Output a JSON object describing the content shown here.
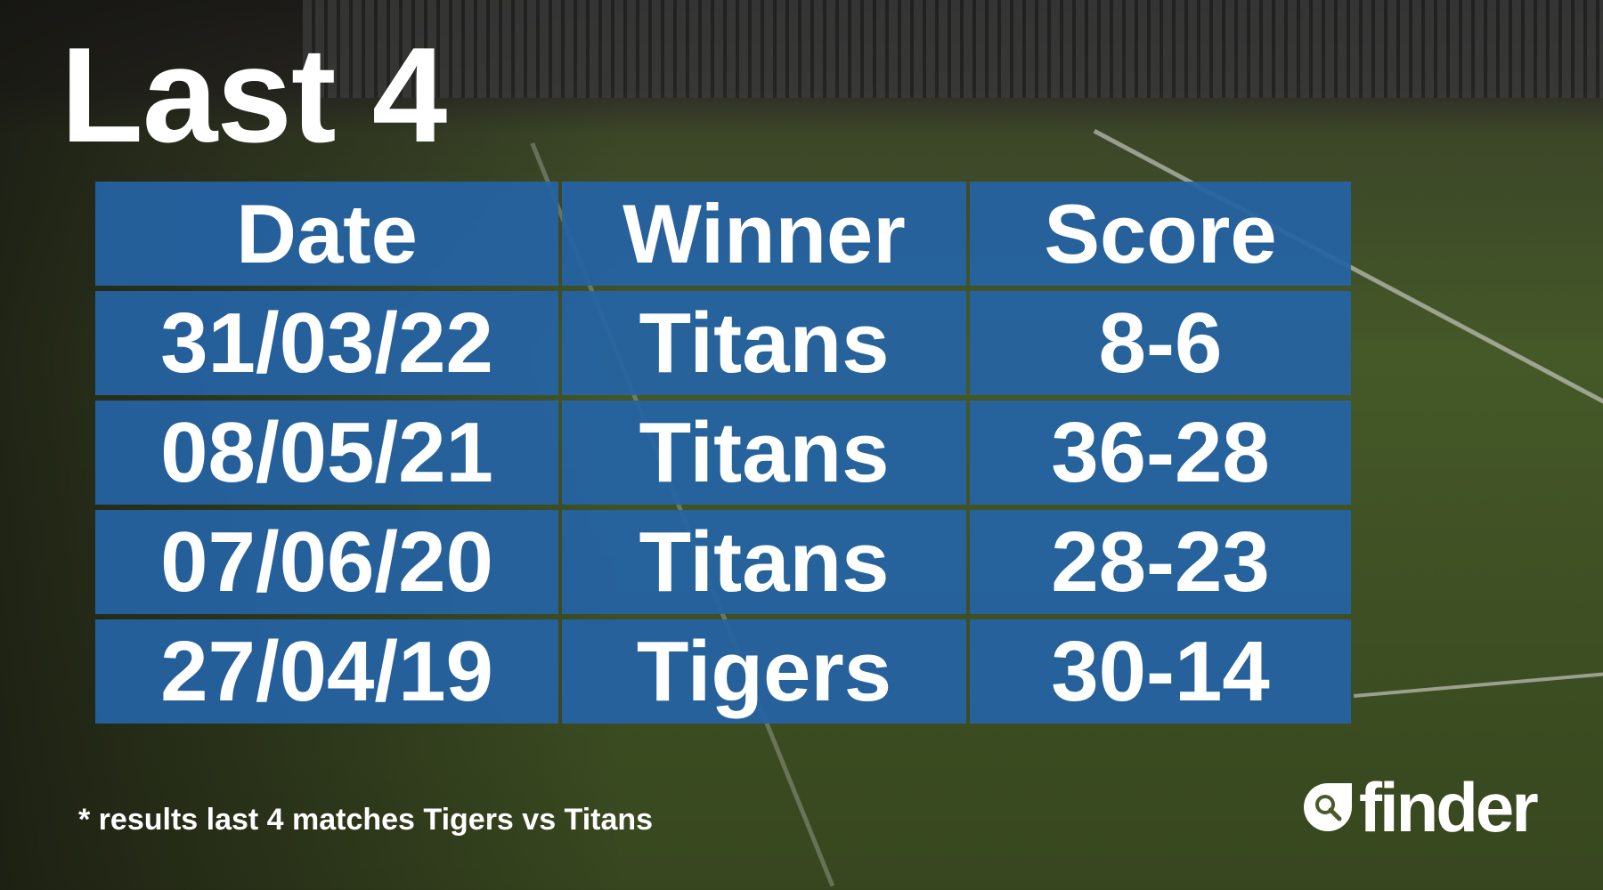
{
  "title": "Last 4",
  "table": {
    "headers": [
      "Date",
      "Winner",
      "Score"
    ],
    "rows": [
      [
        "31/03/22",
        "Titans",
        "8-6"
      ],
      [
        "08/05/21",
        "Titans",
        "36-28"
      ],
      [
        "07/06/20",
        "Titans",
        "28-23"
      ],
      [
        "27/04/19",
        "Tigers",
        "30-14"
      ]
    ]
  },
  "footnote": "* results last 4 matches Tigers vs Titans",
  "logo": {
    "text": "finder",
    "icon": "search-drop-icon"
  },
  "colors": {
    "table_cell": "#2563a5",
    "text": "#ffffff"
  }
}
